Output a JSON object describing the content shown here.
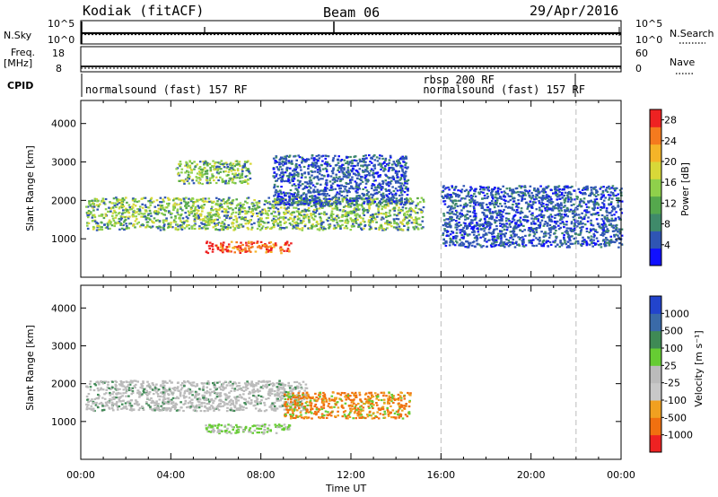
{
  "header": {
    "station": "Kodiak (fitACF)",
    "beam": "Beam 06",
    "date": "29/Apr/2016"
  },
  "noise_panel": {
    "left_label": "N.Sky",
    "left_ticks": [
      "10^5",
      "10^0"
    ],
    "right_label": "N.Search",
    "right_ticks": [
      "10^5",
      "10^0"
    ]
  },
  "freq_panel": {
    "left_label_1": "Freq.",
    "left_label_2": "[MHz]",
    "left_ticks": [
      "18",
      "8"
    ],
    "right_label": "Nave",
    "right_ticks": [
      "60",
      "0"
    ]
  },
  "cpid": {
    "label": "CPID",
    "modes": [
      {
        "name": "normalsound (fast) 157 RF",
        "start_hour": 0,
        "row": 1
      },
      {
        "name": "rbsp 200 RF",
        "start_hour": 16.0,
        "row": 0
      },
      {
        "name": "normalsound (fast) 157 RF",
        "start_hour": 16.0,
        "row": 1
      }
    ]
  },
  "chart_data": [
    {
      "type": "heatmap",
      "name": "power",
      "title": "",
      "xlabel": "",
      "ylabel": "Slant Range [km]",
      "x_range_hours": [
        0,
        24
      ],
      "ylim": [
        0,
        4600
      ],
      "yticks": [
        "1000",
        "2000",
        "3000",
        "4000"
      ],
      "colorbar": {
        "label": "Power [dB]",
        "ticks": [
          "4",
          "8",
          "12",
          "16",
          "20",
          "24",
          "28"
        ],
        "range": [
          0,
          30
        ],
        "colors": [
          "#1010ff",
          "#2f55b4",
          "#3f8a6a",
          "#55a84d",
          "#8fd04b",
          "#d8d838",
          "#f4b428",
          "#f47a1e",
          "#ee2222"
        ]
      },
      "features": [
        {
          "label": "main echo band",
          "hours": [
            0.2,
            15.2
          ],
          "range_km": [
            1250,
            2100
          ],
          "power_db": 14
        },
        {
          "label": "strong lower echo",
          "hours": [
            5.5,
            9.3
          ],
          "range_km": [
            650,
            950
          ],
          "power_db": 24
        },
        {
          "label": "rising high-range echo",
          "hours": [
            8.5,
            14.5
          ],
          "range_km": [
            1900,
            3200
          ],
          "power_db": 8
        },
        {
          "label": "isolated upper patch",
          "hours": [
            4.2,
            7.5
          ],
          "range_km": [
            2450,
            3050
          ],
          "power_db": 14
        },
        {
          "label": "late echoes",
          "hours": [
            16.0,
            24.0
          ],
          "range_km": [
            800,
            2400
          ],
          "power_db": 8
        }
      ]
    },
    {
      "type": "heatmap",
      "name": "velocity",
      "title": "",
      "xlabel": "Time UT",
      "ylabel": "Slant Range [km]",
      "x_range_hours": [
        0,
        24
      ],
      "xticks": [
        "00:00",
        "04:00",
        "08:00",
        "12:00",
        "16:00",
        "20:00",
        "00:00"
      ],
      "ylim": [
        0,
        4600
      ],
      "yticks": [
        "1000",
        "2000",
        "3000",
        "4000"
      ],
      "colorbar": {
        "label": "Velocity [m s⁻¹]",
        "ticks": [
          "1000",
          "500",
          "100",
          "25",
          "-25",
          "-100",
          "-500",
          "-1000"
        ],
        "colors": [
          "#2244cc",
          "#3a6aa8",
          "#3f8a55",
          "#66cc33",
          "#bbbbbb",
          "#c8c8c8",
          "#f0a020",
          "#f07010",
          "#ee2222"
        ]
      },
      "features": [
        {
          "label": "ground scatter band",
          "hours": [
            0.2,
            10.0
          ],
          "range_km": [
            1300,
            2100
          ],
          "velocity": 0
        },
        {
          "label": "negative-velocity echo",
          "hours": [
            9.0,
            14.6
          ],
          "range_km": [
            1100,
            1800
          ],
          "velocity": -150
        },
        {
          "label": "lower echo",
          "hours": [
            5.5,
            9.3
          ],
          "range_km": [
            700,
            950
          ],
          "velocity": 60
        }
      ]
    }
  ],
  "time_markers_hours": [
    16.0,
    22.0
  ]
}
